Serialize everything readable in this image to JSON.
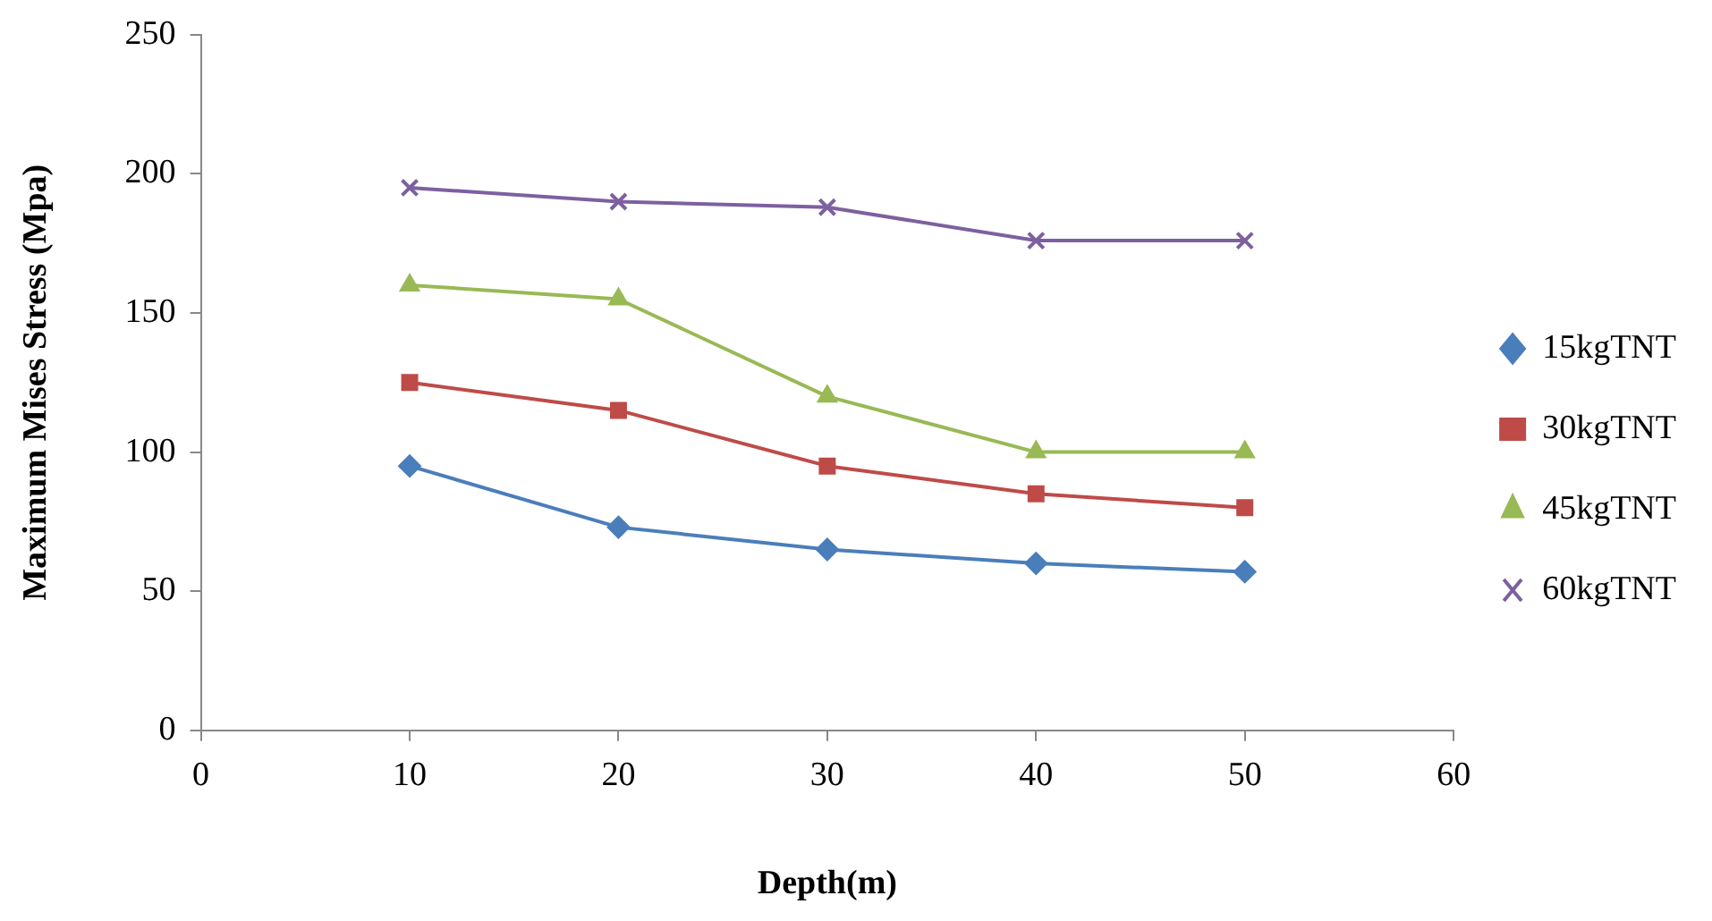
{
  "chart_data": {
    "type": "line",
    "xlabel": "Depth(m)",
    "ylabel": "Maximum Mises Stress (Mpa)",
    "x": [
      10,
      20,
      30,
      40,
      50
    ],
    "series": [
      {
        "name": "15kgTNT",
        "color": "#4a7ebb",
        "marker": "diamond",
        "values": [
          95,
          73,
          65,
          60,
          57
        ]
      },
      {
        "name": "30kgTNT",
        "color": "#be4b48",
        "marker": "square",
        "values": [
          125,
          115,
          95,
          85,
          80
        ]
      },
      {
        "name": "45kgTNT",
        "color": "#98b954",
        "marker": "triangle",
        "values": [
          160,
          155,
          120,
          100,
          100
        ]
      },
      {
        "name": "60kgTNT",
        "color": "#7d60a0",
        "marker": "cross",
        "values": [
          195,
          190,
          188,
          176,
          176
        ]
      }
    ],
    "xlim": [
      0,
      60
    ],
    "xticks": [
      0,
      10,
      20,
      30,
      40,
      50,
      60
    ],
    "ylim": [
      0,
      250
    ],
    "yticks": [
      0,
      50,
      100,
      150,
      200,
      250
    ],
    "grid": false,
    "legend": "right",
    "line_style": "solid"
  }
}
